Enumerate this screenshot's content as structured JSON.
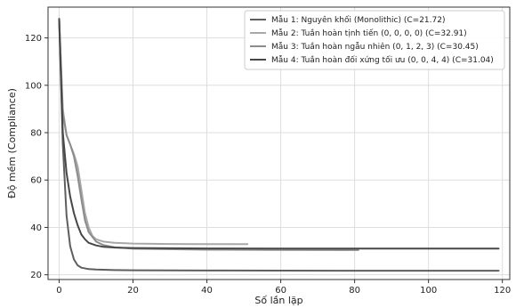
{
  "chart_data": {
    "type": "line",
    "title": "",
    "xlabel": "Số lần lặp",
    "ylabel": "Độ mềm (Compliance)",
    "xlim": [
      -3,
      122
    ],
    "ylim": [
      18,
      133
    ],
    "xticks": [
      0,
      20,
      40,
      60,
      80,
      100,
      120
    ],
    "yticks": [
      20,
      40,
      60,
      80,
      100,
      120
    ],
    "grid": true,
    "legend_position": "top-right",
    "series": [
      {
        "name": "Mẫu 1: Nguyên khối (Monolithic) (C=21.72)",
        "color": "#5e5e5e",
        "x": [
          0,
          1,
          2,
          3,
          4,
          5,
          6,
          8,
          10,
          15,
          20,
          40,
          60,
          80,
          100,
          119
        ],
        "y": [
          128,
          75,
          45,
          32,
          26.5,
          24,
          23,
          22.4,
          22.2,
          22.0,
          21.9,
          21.8,
          21.75,
          21.72,
          21.72,
          21.72
        ]
      },
      {
        "name": "Mẫu 2: Tuần hoàn tịnh tiến (0, 0, 0, 0) (C=32.91)",
        "color": "#a8a8a8",
        "x": [
          0,
          1,
          2,
          3,
          4,
          5,
          6,
          7,
          8,
          9,
          10,
          12,
          15,
          20,
          30,
          40,
          51
        ],
        "y": [
          128,
          90,
          79,
          75,
          71,
          66,
          56,
          46,
          40,
          36.5,
          35,
          34,
          33.5,
          33.2,
          33.0,
          32.95,
          32.91
        ]
      },
      {
        "name": "Mẫu 3: Tuần hoàn ngẫu nhiên (0, 1, 2, 3) (C=30.45)",
        "color": "#8c8c8c",
        "x": [
          0,
          1,
          2,
          3,
          4,
          5,
          6,
          7,
          8,
          10,
          12,
          15,
          20,
          40,
          60,
          81
        ],
        "y": [
          128,
          88,
          79,
          75,
          70,
          62,
          52,
          43,
          38,
          34,
          32.5,
          31.6,
          31.0,
          30.6,
          30.5,
          30.45
        ]
      },
      {
        "name": "Mẫu 4: Tuần hoàn đối xứng tối ưu (0, 0, 4, 4) (C=31.04)",
        "color": "#474747",
        "x": [
          0,
          1,
          2,
          3,
          4,
          5,
          6,
          7,
          8,
          10,
          12,
          15,
          20,
          40,
          60,
          80,
          100,
          119
        ],
        "y": [
          128,
          80,
          63,
          53,
          46,
          41,
          37,
          35,
          33.5,
          32.4,
          31.8,
          31.5,
          31.3,
          31.1,
          31.06,
          31.05,
          31.04,
          31.04
        ]
      }
    ]
  }
}
